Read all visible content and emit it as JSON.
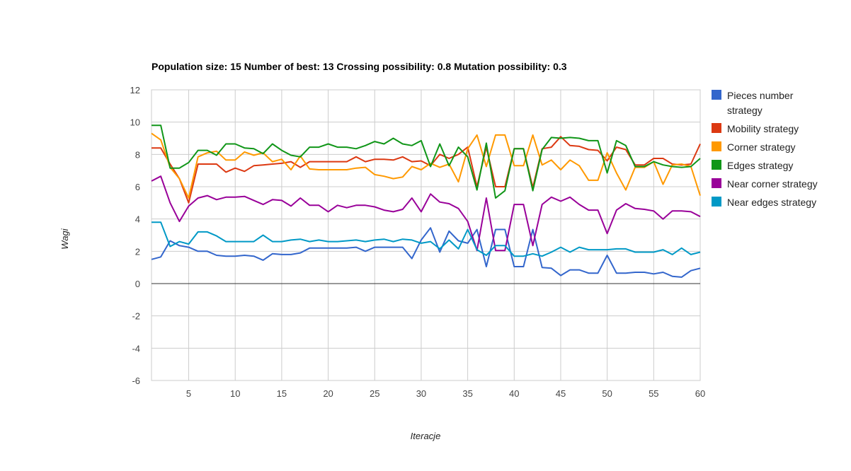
{
  "chart_data": {
    "type": "line",
    "title": "Population size: 15 Number of best: 13 Crossing possibility: 0.8 Mutation possibility: 0.3",
    "xlabel": "Iteracje",
    "ylabel": "Wagi",
    "xlim": [
      1,
      60
    ],
    "ylim": [
      -6,
      12
    ],
    "xticks": [
      5,
      10,
      15,
      20,
      25,
      30,
      35,
      40,
      45,
      50,
      55,
      60
    ],
    "yticks": [
      -6,
      -4,
      -2,
      0,
      2,
      4,
      6,
      8,
      10,
      12
    ],
    "grid": true,
    "legend_position": "right",
    "x": [
      1,
      2,
      3,
      4,
      5,
      6,
      7,
      8,
      9,
      10,
      11,
      12,
      13,
      14,
      15,
      16,
      17,
      18,
      19,
      20,
      21,
      22,
      23,
      24,
      25,
      26,
      27,
      28,
      29,
      30,
      31,
      32,
      33,
      34,
      35,
      36,
      37,
      38,
      39,
      40,
      41,
      42,
      43,
      44,
      45,
      46,
      47,
      48,
      49,
      50,
      51,
      52,
      53,
      54,
      55,
      56,
      57,
      58,
      59,
      60
    ],
    "series": [
      {
        "name": "Pieces number strategy",
        "color": "#3366cc",
        "legend_lines": [
          "Pieces number",
          "strategy"
        ],
        "values": [
          1.5,
          1.65,
          2.65,
          2.35,
          2.25,
          2.0,
          2.0,
          1.75,
          1.7,
          1.7,
          1.75,
          1.7,
          1.45,
          1.85,
          1.8,
          1.8,
          1.9,
          2.2,
          2.2,
          2.2,
          2.2,
          2.2,
          2.25,
          2.0,
          2.25,
          2.25,
          2.25,
          2.25,
          1.55,
          2.7,
          3.45,
          1.95,
          3.25,
          2.65,
          2.5,
          3.35,
          1.05,
          3.35,
          3.35,
          1.05,
          1.05,
          3.35,
          1.0,
          0.95,
          0.5,
          0.85,
          0.85,
          0.65,
          0.65,
          1.75,
          0.65,
          0.65,
          0.7,
          0.7,
          0.6,
          0.7,
          0.45,
          0.4,
          0.8,
          0.95
        ]
      },
      {
        "name": "Mobility strategy",
        "color": "#dc3912",
        "legend_lines": [
          "Mobility strategy"
        ],
        "values": [
          8.4,
          8.4,
          7.4,
          6.5,
          5.0,
          7.4,
          7.4,
          7.4,
          6.9,
          7.15,
          6.95,
          7.3,
          7.35,
          7.4,
          7.45,
          7.55,
          7.2,
          7.55,
          7.55,
          7.55,
          7.55,
          7.55,
          7.85,
          7.55,
          7.7,
          7.7,
          7.65,
          7.85,
          7.55,
          7.6,
          7.3,
          8.0,
          7.75,
          8.0,
          8.45,
          6.0,
          8.45,
          6.0,
          6.0,
          8.35,
          8.35,
          5.95,
          8.35,
          8.45,
          9.1,
          8.55,
          8.5,
          8.3,
          8.25,
          7.6,
          8.45,
          8.3,
          7.35,
          7.35,
          7.75,
          7.75,
          7.4,
          7.35,
          7.4,
          8.65
        ]
      },
      {
        "name": "Corner strategy",
        "color": "#ff9900",
        "legend_lines": [
          "Corner strategy"
        ],
        "values": [
          9.3,
          8.9,
          7.2,
          6.5,
          5.3,
          7.85,
          8.1,
          8.2,
          7.65,
          7.65,
          8.15,
          7.95,
          8.1,
          7.55,
          7.7,
          7.05,
          7.9,
          7.1,
          7.05,
          7.05,
          7.05,
          7.05,
          7.15,
          7.2,
          6.75,
          6.65,
          6.5,
          6.6,
          7.25,
          7.05,
          7.45,
          7.2,
          7.4,
          6.3,
          8.35,
          9.2,
          7.25,
          9.2,
          9.2,
          7.3,
          7.3,
          9.2,
          7.35,
          7.65,
          7.05,
          7.65,
          7.3,
          6.4,
          6.4,
          8.1,
          6.85,
          5.8,
          7.2,
          7.2,
          7.55,
          6.15,
          7.35,
          7.4,
          7.25,
          5.45
        ]
      },
      {
        "name": "Edges strategy",
        "color": "#109618",
        "legend_lines": [
          "Edges strategy"
        ],
        "values": [
          9.8,
          9.8,
          7.15,
          7.15,
          7.5,
          8.25,
          8.25,
          7.95,
          8.65,
          8.65,
          8.4,
          8.35,
          8.05,
          8.65,
          8.25,
          7.95,
          7.85,
          8.45,
          8.45,
          8.65,
          8.45,
          8.45,
          8.35,
          8.55,
          8.8,
          8.65,
          9.0,
          8.65,
          8.55,
          8.85,
          7.25,
          8.65,
          7.3,
          8.45,
          7.85,
          5.8,
          8.7,
          5.3,
          5.75,
          8.35,
          8.35,
          5.75,
          8.3,
          9.05,
          9.0,
          9.05,
          9.0,
          8.85,
          8.85,
          6.85,
          8.85,
          8.55,
          7.25,
          7.25,
          7.55,
          7.35,
          7.25,
          7.2,
          7.25,
          7.75
        ]
      },
      {
        "name": "Near corner strategy",
        "color": "#990099",
        "legend_lines": [
          "Near corner strategy"
        ],
        "values": [
          6.35,
          6.65,
          5.0,
          3.85,
          4.8,
          5.3,
          5.45,
          5.2,
          5.35,
          5.35,
          5.4,
          5.15,
          4.9,
          5.2,
          5.15,
          4.8,
          5.3,
          4.85,
          4.85,
          4.45,
          4.85,
          4.7,
          4.85,
          4.85,
          4.75,
          4.55,
          4.45,
          4.6,
          5.3,
          4.45,
          5.55,
          5.05,
          4.95,
          4.65,
          3.85,
          2.05,
          5.3,
          2.05,
          2.05,
          4.9,
          4.9,
          2.35,
          4.9,
          5.35,
          5.1,
          5.35,
          4.9,
          4.55,
          4.55,
          3.1,
          4.55,
          4.95,
          4.65,
          4.6,
          4.5,
          4.0,
          4.5,
          4.5,
          4.45,
          4.15
        ]
      },
      {
        "name": "Near edges strategy",
        "color": "#0099c6",
        "legend_lines": [
          "Near edges strategy"
        ],
        "values": [
          3.8,
          3.8,
          2.3,
          2.6,
          2.45,
          3.2,
          3.2,
          2.95,
          2.6,
          2.6,
          2.6,
          2.6,
          3.0,
          2.6,
          2.6,
          2.7,
          2.75,
          2.6,
          2.7,
          2.6,
          2.6,
          2.65,
          2.7,
          2.6,
          2.7,
          2.75,
          2.6,
          2.75,
          2.7,
          2.5,
          2.6,
          2.15,
          2.7,
          2.15,
          3.35,
          2.1,
          1.75,
          2.35,
          2.35,
          1.7,
          1.7,
          1.85,
          1.7,
          1.95,
          2.25,
          1.95,
          2.25,
          2.1,
          2.1,
          2.1,
          2.15,
          2.15,
          1.95,
          1.95,
          1.95,
          2.1,
          1.8,
          2.2,
          1.8,
          1.95
        ]
      }
    ]
  }
}
